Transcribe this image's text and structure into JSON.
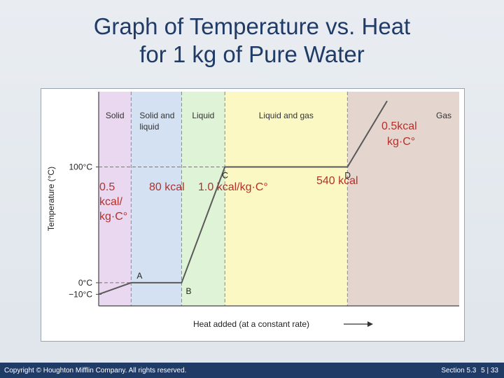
{
  "slide": {
    "title_line1": "Graph of Temperature vs. Heat",
    "title_line2": "for 1 kg of Pure Water"
  },
  "footer": {
    "copyright": "Copyright © Houghton Mifflin Company. All rights reserved.",
    "section": "Section 5.3",
    "page": "5 | 33"
  },
  "colors": {
    "solid": "#ead7f0",
    "solid_liquid": "#d3e1f3",
    "liquid": "#dff3d6",
    "liquid_gas": "#fbf8c4",
    "gas": "#e4d6cf",
    "curve": "#5a5a5a",
    "annotation_text": "#b5302a",
    "title": "#1f3b66"
  },
  "chart_data": {
    "type": "line",
    "xlabel": "Heat added (at a constant rate)",
    "ylabel": "Temperature (°C)",
    "y_ticks": [
      "100°C",
      "0°C",
      "−10°C"
    ],
    "y_tick_values": [
      100,
      0,
      -10
    ],
    "ylim": [
      -20,
      165
    ],
    "xlim": [
      0,
      100
    ],
    "regions": [
      {
        "label": "Solid",
        "x_start": 0,
        "x_end": 9,
        "color_key": "solid"
      },
      {
        "label": "Solid and liquid",
        "x_start": 9,
        "x_end": 23,
        "color_key": "solid_liquid"
      },
      {
        "label": "Liquid",
        "x_start": 23,
        "x_end": 35,
        "color_key": "liquid"
      },
      {
        "label": "Liquid and gas",
        "x_start": 35,
        "x_end": 69,
        "color_key": "liquid_gas"
      },
      {
        "label": "Gas",
        "x_start": 69,
        "x_end": 100,
        "color_key": "gas"
      }
    ],
    "points": [
      {
        "label": "",
        "x": 0,
        "y": -10
      },
      {
        "label": "A",
        "x": 9,
        "y": 0
      },
      {
        "label": "B",
        "x": 23,
        "y": 0
      },
      {
        "label": "C",
        "x": 35,
        "y": 100
      },
      {
        "label": "D",
        "x": 69,
        "y": 100
      },
      {
        "label": "",
        "x": 80,
        "y": 157
      }
    ],
    "annotations": [
      {
        "line1": "0.5",
        "line2": "kcal/",
        "line3": "kg·C°",
        "segment": "Solid"
      },
      {
        "line1": "80 kcal",
        "segment": "Solid and liquid"
      },
      {
        "line1": "1.0 kcal/kg·C°",
        "segment": "Liquid"
      },
      {
        "line1": "540 kcal",
        "segment": "Liquid and gas"
      },
      {
        "line1": "0.5kcal",
        "line2": "kg·C°",
        "segment": "Gas"
      }
    ],
    "grid": false,
    "legend": "none"
  }
}
